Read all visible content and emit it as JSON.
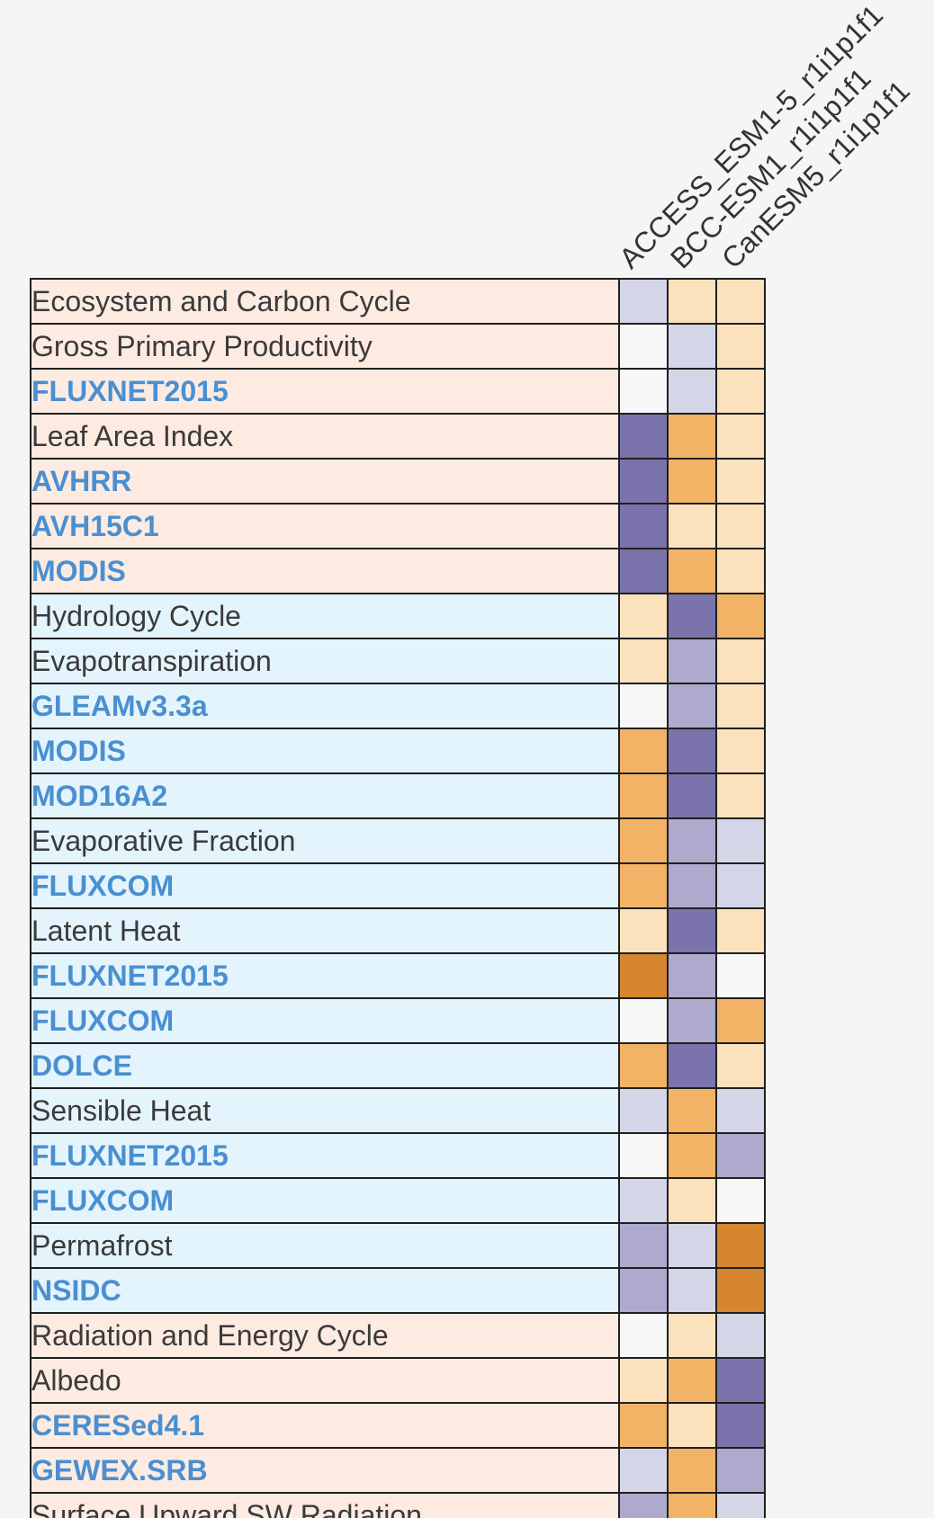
{
  "header": {
    "columns": [
      "ACCESS_ESM1-5_r1i1p1f1",
      "BCC-ESM1_r1i1p1f1",
      "CanESM5_r1i1p1f1"
    ]
  },
  "palette": {
    "dark_orange": "#d6862f",
    "orange": "#f3b366",
    "cream": "#fbe2bd",
    "white": "#f7f7f7",
    "lavender": "#d4d6e7",
    "light_purple": "#aeaacd",
    "dark_purple": "#7b73ab",
    "section_ecosystem_bg": "#fdebe2",
    "section_hydrology_bg": "#e3f4fc",
    "link_color": "#4a8fd1",
    "text_color": "#3a3a3a",
    "border_color": "#1f1f1f"
  },
  "rows": [
    {
      "label": "Ecosystem and Carbon Cycle",
      "level": 0,
      "type": "category",
      "section": "ecosystem",
      "cells": [
        "lavender",
        "cream",
        "cream"
      ]
    },
    {
      "label": "Gross Primary Productivity",
      "level": 1,
      "type": "variable",
      "section": "ecosystem",
      "cells": [
        "white",
        "lavender",
        "cream"
      ]
    },
    {
      "label": "FLUXNET2015",
      "level": 2,
      "type": "dataset",
      "section": "ecosystem",
      "cells": [
        "white",
        "lavender",
        "cream"
      ]
    },
    {
      "label": "Leaf Area Index",
      "level": 1,
      "type": "variable",
      "section": "ecosystem",
      "cells": [
        "dark_purple",
        "orange",
        "cream"
      ]
    },
    {
      "label": "AVHRR",
      "level": 2,
      "type": "dataset",
      "section": "ecosystem",
      "cells": [
        "dark_purple",
        "orange",
        "cream"
      ]
    },
    {
      "label": "AVH15C1",
      "level": 2,
      "type": "dataset",
      "section": "ecosystem",
      "cells": [
        "dark_purple",
        "cream",
        "cream"
      ]
    },
    {
      "label": "MODIS",
      "level": 2,
      "type": "dataset",
      "section": "ecosystem",
      "cells": [
        "dark_purple",
        "orange",
        "cream"
      ]
    },
    {
      "label": "Hydrology Cycle",
      "level": 0,
      "type": "category",
      "section": "hydrology",
      "cells": [
        "cream",
        "dark_purple",
        "orange"
      ]
    },
    {
      "label": "Evapotranspiration",
      "level": 1,
      "type": "variable",
      "section": "hydrology",
      "cells": [
        "cream",
        "light_purple",
        "cream"
      ]
    },
    {
      "label": "GLEAMv3.3a",
      "level": 2,
      "type": "dataset",
      "section": "hydrology",
      "cells": [
        "white",
        "light_purple",
        "cream"
      ]
    },
    {
      "label": "MODIS",
      "level": 2,
      "type": "dataset",
      "section": "hydrology",
      "cells": [
        "orange",
        "dark_purple",
        "cream"
      ]
    },
    {
      "label": "MOD16A2",
      "level": 2,
      "type": "dataset",
      "section": "hydrology",
      "cells": [
        "orange",
        "dark_purple",
        "cream"
      ]
    },
    {
      "label": "Evaporative Fraction",
      "level": 1,
      "type": "variable",
      "section": "hydrology",
      "cells": [
        "orange",
        "light_purple",
        "lavender"
      ]
    },
    {
      "label": "FLUXCOM",
      "level": 2,
      "type": "dataset",
      "section": "hydrology",
      "cells": [
        "orange",
        "light_purple",
        "lavender"
      ]
    },
    {
      "label": "Latent Heat",
      "level": 1,
      "type": "variable",
      "section": "hydrology",
      "cells": [
        "cream",
        "dark_purple",
        "cream"
      ]
    },
    {
      "label": "FLUXNET2015",
      "level": 2,
      "type": "dataset",
      "section": "hydrology",
      "cells": [
        "dark_orange",
        "light_purple",
        "white"
      ]
    },
    {
      "label": "FLUXCOM",
      "level": 2,
      "type": "dataset",
      "section": "hydrology",
      "cells": [
        "white",
        "light_purple",
        "orange"
      ]
    },
    {
      "label": "DOLCE",
      "level": 2,
      "type": "dataset",
      "section": "hydrology",
      "cells": [
        "orange",
        "dark_purple",
        "cream"
      ]
    },
    {
      "label": "Sensible Heat",
      "level": 1,
      "type": "variable",
      "section": "hydrology",
      "cells": [
        "lavender",
        "orange",
        "lavender"
      ]
    },
    {
      "label": "FLUXNET2015",
      "level": 2,
      "type": "dataset",
      "section": "hydrology",
      "cells": [
        "white",
        "orange",
        "light_purple"
      ]
    },
    {
      "label": "FLUXCOM",
      "level": 2,
      "type": "dataset",
      "section": "hydrology",
      "cells": [
        "lavender",
        "cream",
        "white"
      ]
    },
    {
      "label": "Permafrost",
      "level": 1,
      "type": "variable",
      "section": "hydrology",
      "cells": [
        "light_purple",
        "lavender",
        "dark_orange"
      ]
    },
    {
      "label": "NSIDC",
      "level": 2,
      "type": "dataset",
      "section": "hydrology",
      "cells": [
        "light_purple",
        "lavender",
        "dark_orange"
      ]
    },
    {
      "label": "Radiation and Energy Cycle",
      "level": 0,
      "type": "category",
      "section": "radiation",
      "cells": [
        "white",
        "cream",
        "lavender"
      ]
    },
    {
      "label": "Albedo",
      "level": 1,
      "type": "variable",
      "section": "radiation",
      "cells": [
        "cream",
        "orange",
        "dark_purple"
      ]
    },
    {
      "label": "CERESed4.1",
      "level": 2,
      "type": "dataset",
      "section": "radiation",
      "cells": [
        "orange",
        "cream",
        "dark_purple"
      ]
    },
    {
      "label": "GEWEX.SRB",
      "level": 2,
      "type": "dataset",
      "section": "radiation",
      "cells": [
        "lavender",
        "orange",
        "light_purple"
      ]
    },
    {
      "label": "Surface Upward SW Radiation",
      "level": 1,
      "type": "variable",
      "section": "radiation",
      "cells": [
        "light_purple",
        "orange",
        "lavender"
      ]
    }
  ]
}
